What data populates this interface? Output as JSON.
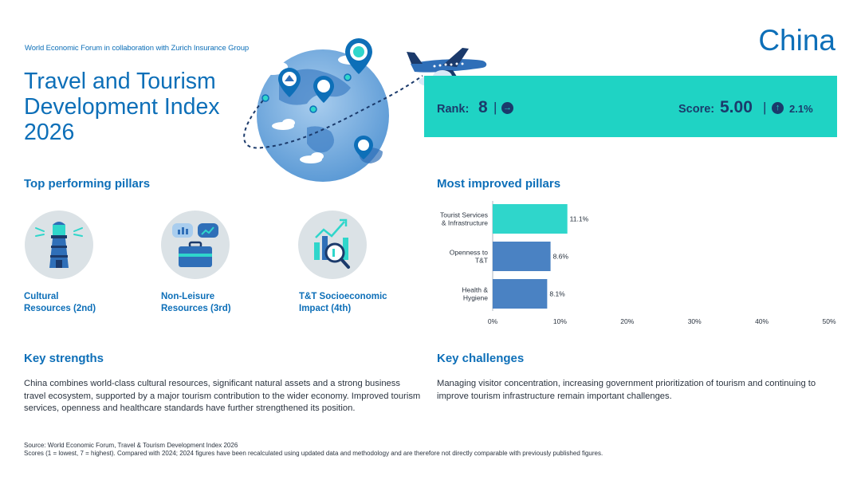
{
  "header": {
    "org": "World Economic Forum in collaboration with Zurich Insurance Group",
    "title": "Travel and Tourism Development Index 2026",
    "country": "China"
  },
  "banner": {
    "rank_label": "Rank:",
    "rank_value": "8",
    "rank_sep": "|",
    "rank_trend_icon": "arrow-right-icon",
    "score_label": "Score:",
    "score_value": "5.00",
    "score_sep": "|",
    "score_trend_icon": "arrow-up-icon",
    "score_change": "2.1%",
    "color": "#1fd3c4"
  },
  "top_pillars": {
    "heading": "Top performing pillars",
    "items": [
      {
        "label_line1": "Cultural",
        "label_line2": "Resources (2nd)",
        "icon": "lighthouse-icon"
      },
      {
        "label_line1": "Non-Leisure",
        "label_line2": "Resources (3rd)",
        "icon": "briefcase-icon"
      },
      {
        "label_line1": "T&T Socioeconomic",
        "label_line2": "Impact (4th)",
        "icon": "chart-magnifier-icon"
      }
    ]
  },
  "improved": {
    "heading": "Most improved pillars"
  },
  "chart_data": {
    "type": "bar",
    "orientation": "horizontal",
    "categories": [
      "Tourist Services & Infrastructure",
      "Openness to T&T",
      "Health & Hygiene"
    ],
    "category_lines": [
      [
        "Tourist Services",
        "& Infrastructure"
      ],
      [
        "Openness to",
        "T&T"
      ],
      [
        "Health &",
        "Hygiene"
      ]
    ],
    "values": [
      11.1,
      8.6,
      8.1
    ],
    "value_labels": [
      "11.1%",
      "8.6%",
      "8.1%"
    ],
    "colors": [
      "#2fd6cb",
      "#4a82c3",
      "#4a82c3"
    ],
    "xlim": [
      0,
      50
    ],
    "ticks": [
      "0%",
      "10%",
      "20%",
      "30%",
      "40%",
      "50%"
    ],
    "grid": false
  },
  "strengths": {
    "heading": "Key strengths",
    "text": "China combines world-class cultural resources, significant natural assets and a strong business travel ecosystem, supported by a major tourism contribution to the wider economy. Improved tourism services, openness and healthcare standards have further strengthened its position."
  },
  "challenges": {
    "heading": "Key challenges",
    "text": "Managing visitor concentration, increasing government prioritization of tourism and continuing to improve tourism infrastructure remain important challenges."
  },
  "footer": {
    "source": "Source: World Economic Forum, Travel & Tourism Development Index 2026",
    "note": "Scores (1 = lowest, 7 = highest). Compared with 2024; 2024 figures have been recalculated using updated data and methodology and are therefore not directly comparable with previously published figures."
  }
}
